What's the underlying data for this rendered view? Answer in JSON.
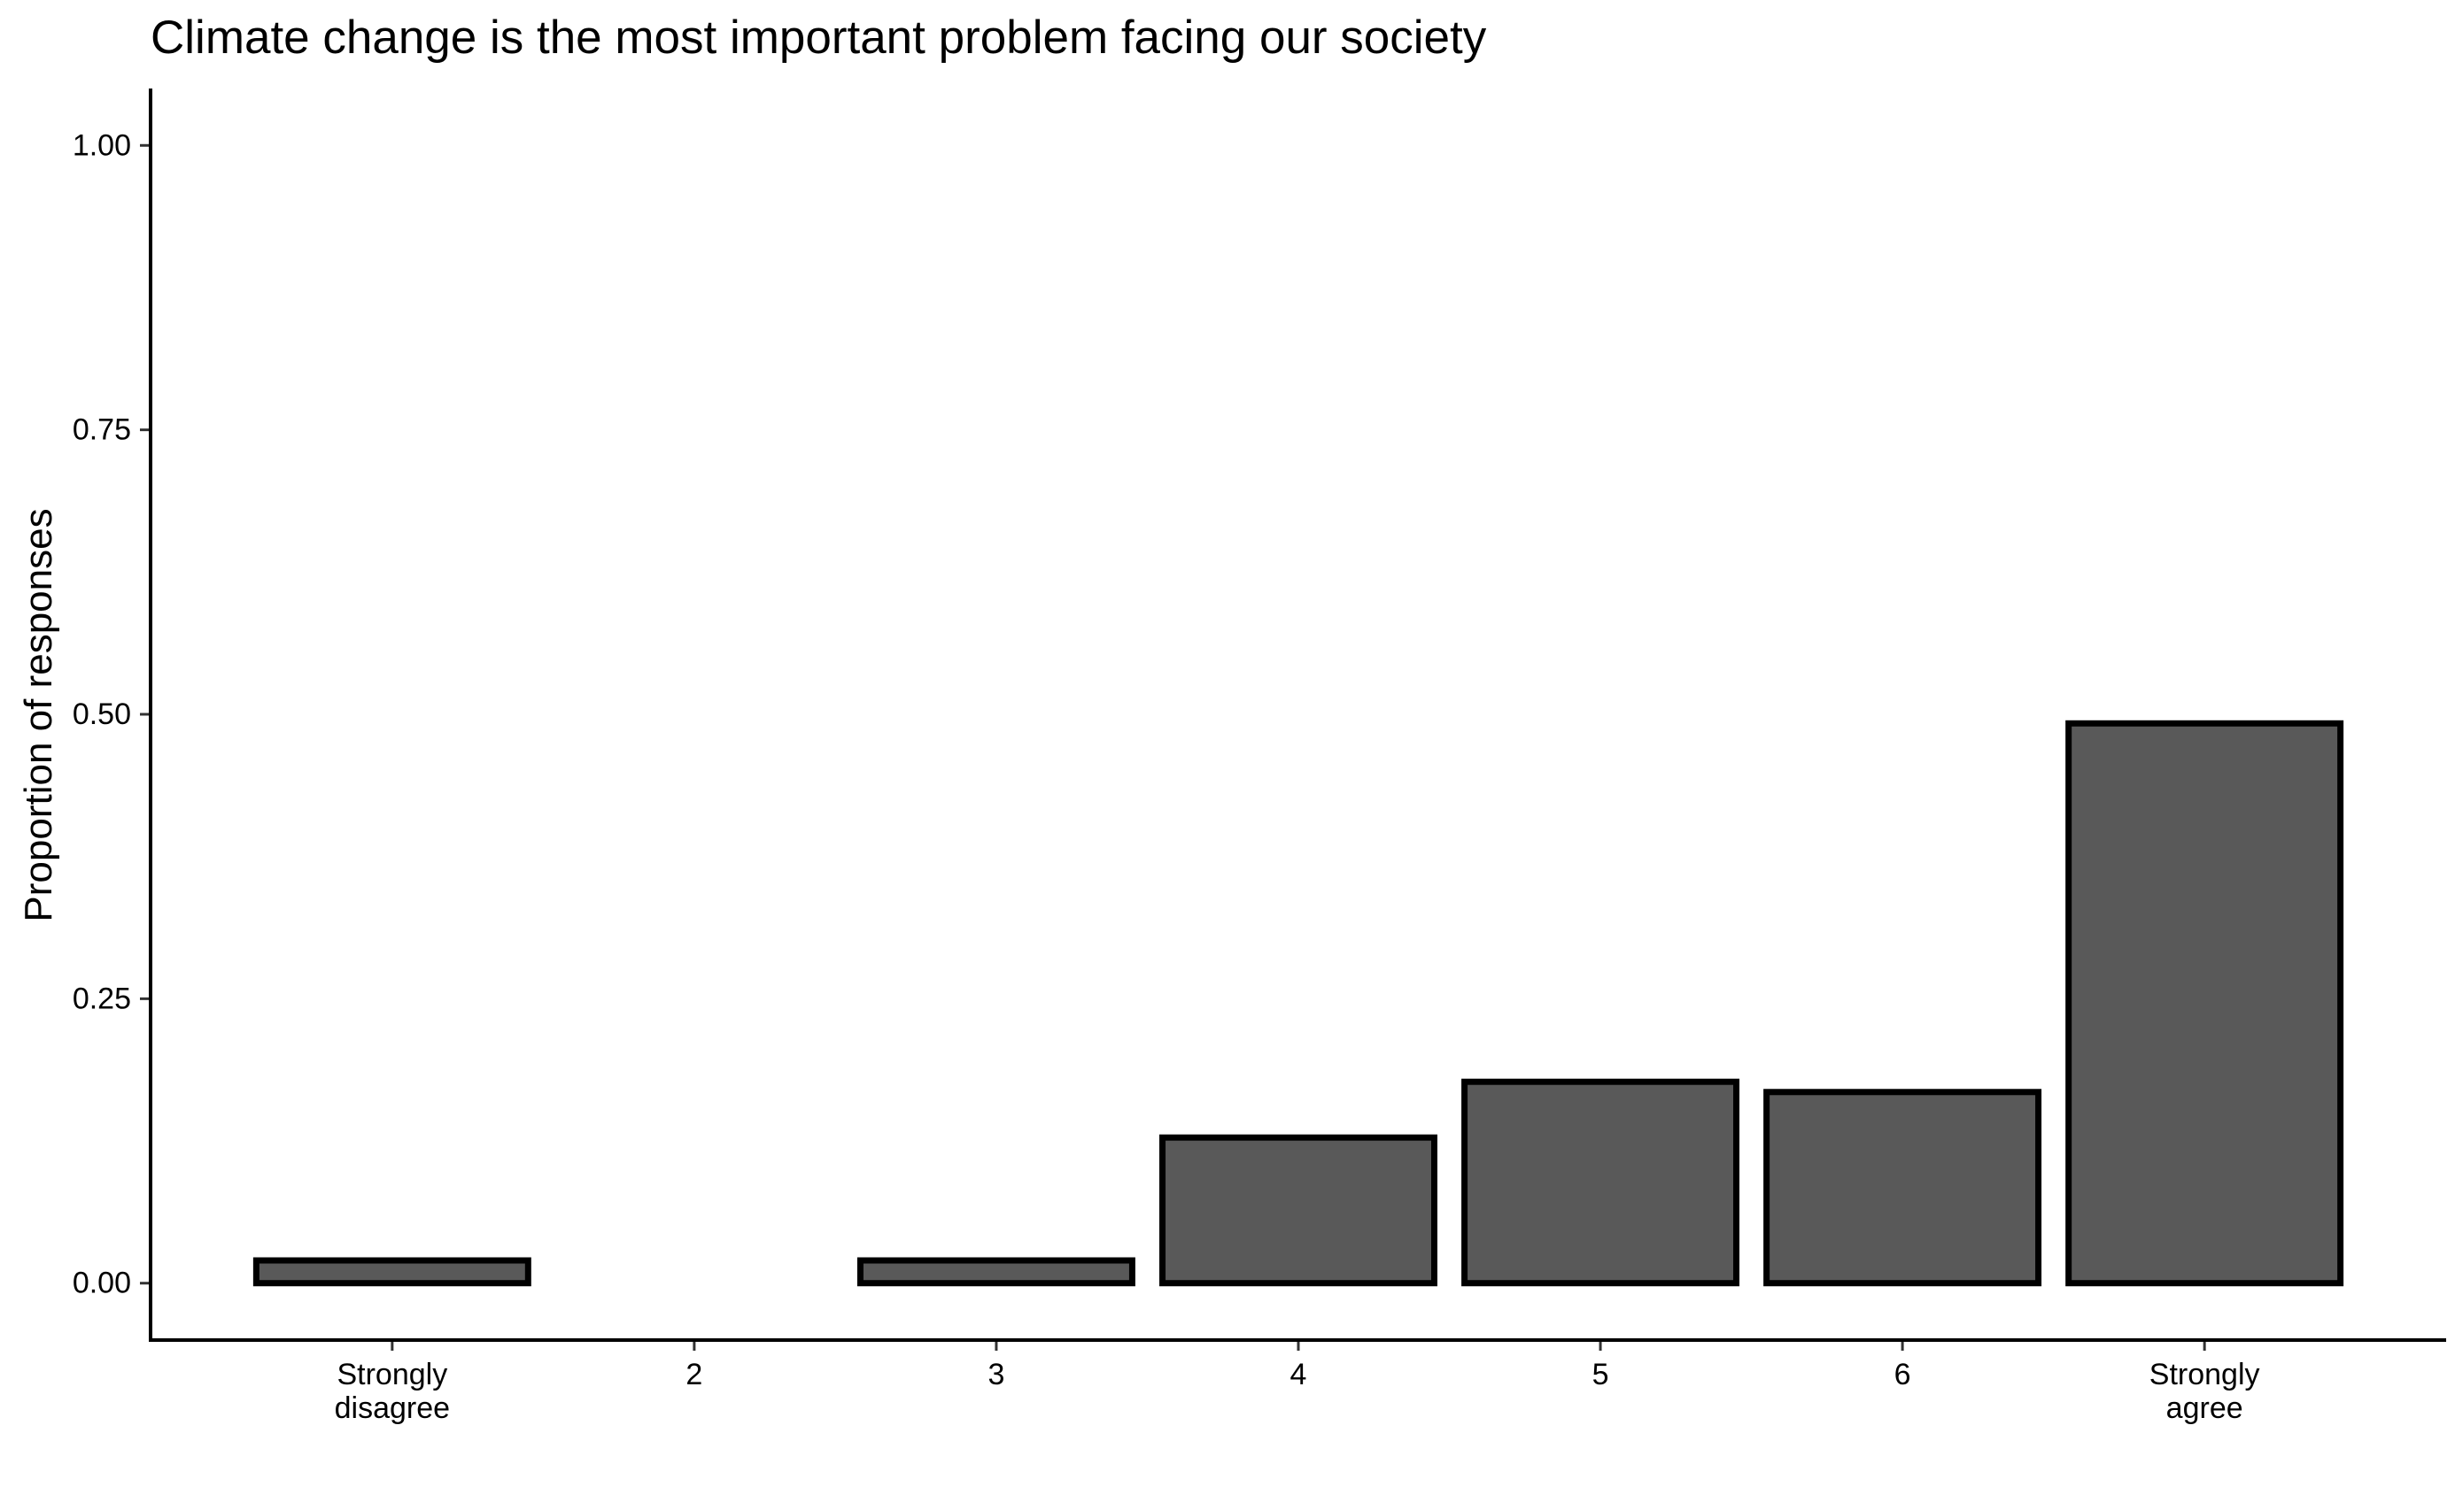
{
  "chart_data": {
    "type": "bar",
    "title": "Climate change is the most important problem facing our society",
    "xlabel": "",
    "ylabel": "Proportion of responses",
    "categories": [
      [
        "Strongly",
        "disagree"
      ],
      [
        "2"
      ],
      [
        "3"
      ],
      [
        "4"
      ],
      [
        "5"
      ],
      [
        "6"
      ],
      [
        "Strongly",
        "agree"
      ]
    ],
    "values": [
      0.02,
      0.0,
      0.02,
      0.128,
      0.177,
      0.168,
      0.492
    ],
    "ylim": [
      -0.05,
      1.05
    ],
    "yticks": [
      0.0,
      0.25,
      0.5,
      0.75,
      1.0
    ],
    "ytick_labels": [
      "0.00",
      "0.25",
      "0.50",
      "0.75",
      "1.00"
    ],
    "grid": false,
    "legend": "none",
    "bar_fill": "#595959",
    "bar_stroke": "#000000"
  }
}
